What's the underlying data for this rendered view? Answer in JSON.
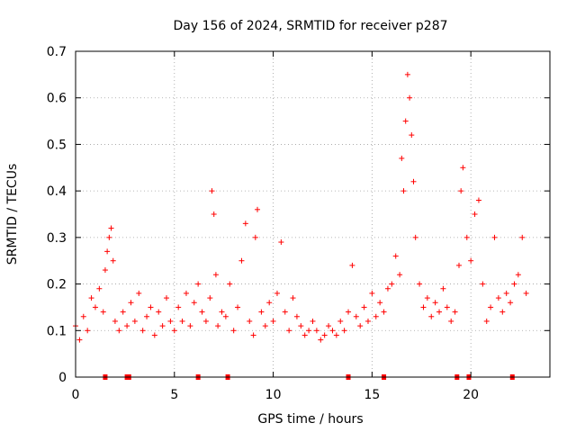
{
  "chart_data": {
    "type": "scatter",
    "title": "Day 156 of 2024, SRMTID for receiver p287",
    "xlabel": "GPS time / hours",
    "ylabel": "SRMTID / TECUs",
    "xlim": [
      0,
      24
    ],
    "ylim": [
      0,
      0.7
    ],
    "x_ticks": [
      0,
      5,
      10,
      15,
      20
    ],
    "x_tick_labels": [
      "0",
      "5",
      "10",
      "15",
      "20"
    ],
    "y_ticks": [
      0,
      0.1,
      0.2,
      0.3,
      0.4,
      0.5,
      0.6,
      0.7
    ],
    "y_tick_labels": [
      "0",
      "0.1",
      "0.2",
      "0.3",
      "0.4",
      "0.5",
      "0.6",
      "0.7"
    ],
    "grid": true,
    "marker": "+",
    "color": "#ff0000",
    "series": [
      {
        "name": "SRMTID",
        "x": [
          0.0,
          0.2,
          0.4,
          0.6,
          0.8,
          1.0,
          1.2,
          1.4,
          1.5,
          1.6,
          1.7,
          1.8,
          1.9,
          2.0,
          2.2,
          2.4,
          2.6,
          2.8,
          3.0,
          3.2,
          3.4,
          3.6,
          3.8,
          4.0,
          4.2,
          4.4,
          4.6,
          4.8,
          5.0,
          5.2,
          5.4,
          5.6,
          5.8,
          6.0,
          6.2,
          6.4,
          6.6,
          6.8,
          6.9,
          7.0,
          7.1,
          7.2,
          7.4,
          7.6,
          7.8,
          8.0,
          8.2,
          8.4,
          8.6,
          8.8,
          9.0,
          9.1,
          9.2,
          9.4,
          9.6,
          9.8,
          10.0,
          10.2,
          10.4,
          10.6,
          10.8,
          11.0,
          11.2,
          11.4,
          11.6,
          11.8,
          12.0,
          12.2,
          12.4,
          12.6,
          12.8,
          13.0,
          13.2,
          13.4,
          13.6,
          13.8,
          14.0,
          14.2,
          14.4,
          14.6,
          14.8,
          15.0,
          15.2,
          15.4,
          15.6,
          15.8,
          16.0,
          16.2,
          16.4,
          16.5,
          16.6,
          16.7,
          16.8,
          16.9,
          17.0,
          17.1,
          17.2,
          17.4,
          17.6,
          17.8,
          18.0,
          18.2,
          18.4,
          18.6,
          18.8,
          19.0,
          19.2,
          19.4,
          19.5,
          19.6,
          19.8,
          20.0,
          20.2,
          20.4,
          20.6,
          20.8,
          21.0,
          21.2,
          21.4,
          21.6,
          21.8,
          22.0,
          22.2,
          22.4,
          22.6,
          22.8
        ],
        "y": [
          0.11,
          0.08,
          0.13,
          0.1,
          0.17,
          0.15,
          0.19,
          0.14,
          0.23,
          0.27,
          0.3,
          0.32,
          0.25,
          0.12,
          0.1,
          0.14,
          0.11,
          0.16,
          0.12,
          0.18,
          0.1,
          0.13,
          0.15,
          0.09,
          0.14,
          0.11,
          0.17,
          0.12,
          0.1,
          0.15,
          0.12,
          0.18,
          0.11,
          0.16,
          0.2,
          0.14,
          0.12,
          0.17,
          0.4,
          0.35,
          0.22,
          0.11,
          0.14,
          0.13,
          0.2,
          0.1,
          0.15,
          0.25,
          0.33,
          0.12,
          0.09,
          0.3,
          0.36,
          0.14,
          0.11,
          0.16,
          0.12,
          0.18,
          0.29,
          0.14,
          0.1,
          0.17,
          0.13,
          0.11,
          0.09,
          0.1,
          0.12,
          0.1,
          0.08,
          0.09,
          0.11,
          0.1,
          0.09,
          0.12,
          0.1,
          0.14,
          0.24,
          0.13,
          0.11,
          0.15,
          0.12,
          0.18,
          0.13,
          0.16,
          0.14,
          0.19,
          0.2,
          0.26,
          0.22,
          0.47,
          0.4,
          0.55,
          0.65,
          0.6,
          0.52,
          0.42,
          0.3,
          0.2,
          0.15,
          0.17,
          0.13,
          0.16,
          0.14,
          0.19,
          0.15,
          0.12,
          0.14,
          0.24,
          0.4,
          0.45,
          0.3,
          0.25,
          0.35,
          0.38,
          0.2,
          0.12,
          0.15,
          0.3,
          0.17,
          0.14,
          0.18,
          0.16,
          0.2,
          0.22,
          0.3,
          0.18
        ]
      }
    ],
    "zero_markers_x": [
      1.5,
      2.6,
      2.7,
      6.2,
      7.7,
      13.8,
      15.6,
      19.3,
      19.9,
      22.1
    ]
  }
}
